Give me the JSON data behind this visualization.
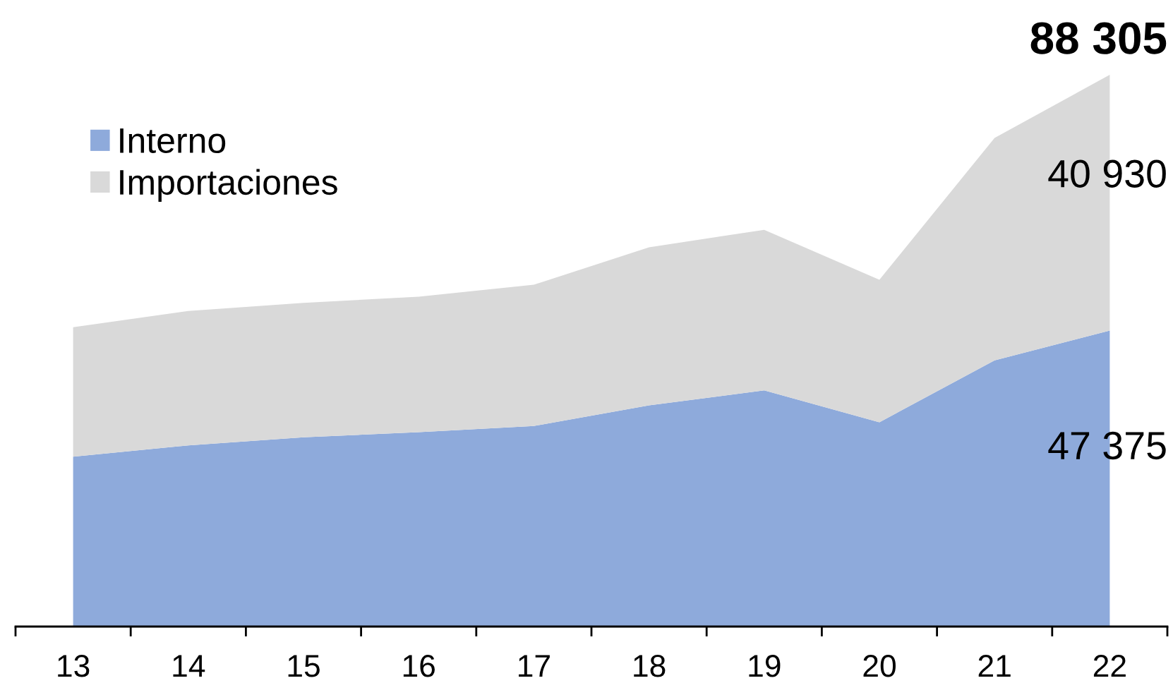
{
  "chart_data": {
    "type": "area",
    "stacked": true,
    "categories": [
      "13",
      "14",
      "15",
      "16",
      "17",
      "18",
      "19",
      "20",
      "21",
      "22"
    ],
    "series": [
      {
        "name": "Interno",
        "color": "#8eaadb",
        "values": [
          27200,
          29000,
          30300,
          31100,
          32100,
          35400,
          37800,
          32700,
          42600,
          47375
        ],
        "value_labels": [
          null,
          null,
          null,
          null,
          null,
          null,
          null,
          null,
          null,
          "47 375"
        ]
      },
      {
        "name": "Importaciones",
        "color": "#d9d9d9",
        "values": [
          20700,
          21500,
          21500,
          21700,
          22600,
          25300,
          25700,
          22800,
          35600,
          40930
        ],
        "value_labels": [
          null,
          null,
          null,
          null,
          null,
          null,
          null,
          null,
          null,
          "40 930"
        ]
      }
    ],
    "totals": [
      null,
      null,
      null,
      null,
      null,
      null,
      null,
      null,
      null,
      "88 305"
    ],
    "legend": "top left",
    "grid": false
  }
}
